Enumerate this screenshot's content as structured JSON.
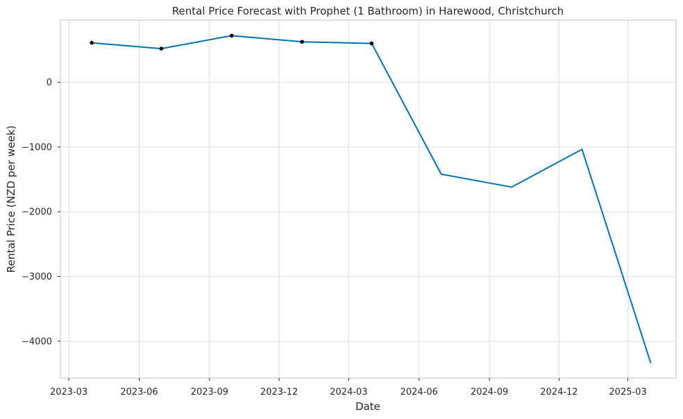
{
  "chart_data": {
    "type": "line",
    "title": "Rental Price Forecast with Prophet (1 Bathroom) in Harewood, Christchurch",
    "xlabel": "Date",
    "ylabel": "Rental Price (NZD per week)",
    "x_ticks": [
      "2023-03",
      "2023-06",
      "2023-09",
      "2023-12",
      "2024-03",
      "2024-06",
      "2024-09",
      "2024-12",
      "2025-03"
    ],
    "y_ticks": [
      0,
      -1000,
      -2000,
      -3000,
      -4000
    ],
    "xlim": [
      "2023-02-18",
      "2025-05-03"
    ],
    "ylim": [
      -4570,
      960
    ],
    "grid": true,
    "line_color": "#0072b2",
    "marker_color": "#000000",
    "series": [
      {
        "x": [
          "2023-03-31",
          "2023-06-30",
          "2023-09-30",
          "2023-12-31",
          "2024-03-31",
          "2024-06-30",
          "2024-09-30",
          "2024-12-31",
          "2025-03-31"
        ],
        "y": [
          610,
          520,
          720,
          625,
          600,
          -1420,
          -1620,
          -1035,
          -4340
        ]
      }
    ],
    "observed": {
      "x": [
        "2023-03-31",
        "2023-06-30",
        "2023-09-30",
        "2023-12-31",
        "2024-03-31"
      ],
      "y": [
        610,
        520,
        720,
        625,
        600
      ]
    }
  }
}
